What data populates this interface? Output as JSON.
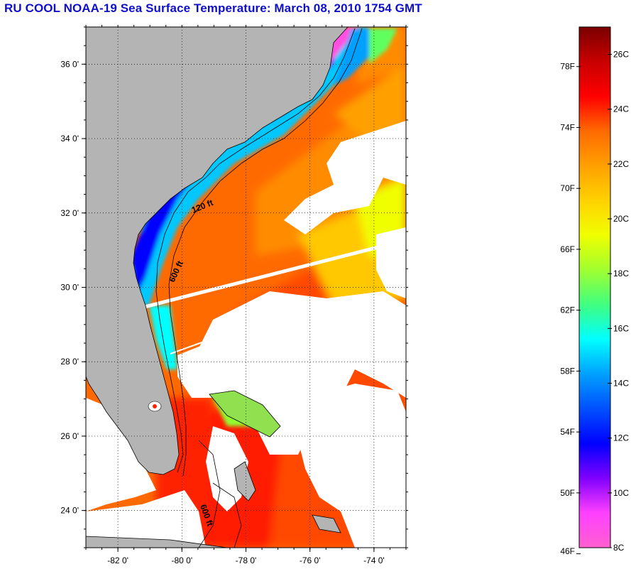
{
  "title": "RU COOL  NOAA-19  Sea Surface Temperature:  March 08, 2010 1754 GMT",
  "map": {
    "lon_range": [
      -83,
      -73
    ],
    "lat_range": [
      23,
      37
    ],
    "lon_ticks": [
      "-82 0'",
      "-80 0'",
      "-78 0'",
      "-76 0'",
      "-74 0'"
    ],
    "lat_ticks": [
      "36 0'",
      "34 0'",
      "32 0'",
      "30 0'",
      "28 0'",
      "26 0'",
      "24 0'"
    ],
    "gridlines": "dotted",
    "contour_labels": [
      "120 ft",
      "600 ft",
      "600 ft"
    ],
    "land_color": "#b4b4b4",
    "cloud_color": "#ffffff"
  },
  "colorbar": {
    "fahrenheit_ticks": [
      "78F",
      "74F",
      "70F",
      "66F",
      "62F",
      "58F",
      "54F",
      "50F",
      "46F"
    ],
    "celsius_ticks": [
      "26C",
      "24C",
      "22C",
      "20C",
      "18C",
      "16C",
      "14C",
      "12C",
      "10C",
      "8C"
    ],
    "range_c": [
      8,
      27
    ],
    "colors_top_to_bottom": [
      "#7a0000",
      "#c80000",
      "#ff0000",
      "#ff6a00",
      "#ffa000",
      "#ffd200",
      "#f0ff00",
      "#a0ff30",
      "#40ff80",
      "#00ffff",
      "#00a0ff",
      "#0050ff",
      "#0000ff",
      "#8000ff",
      "#ff40ff",
      "#ff60d0"
    ]
  }
}
